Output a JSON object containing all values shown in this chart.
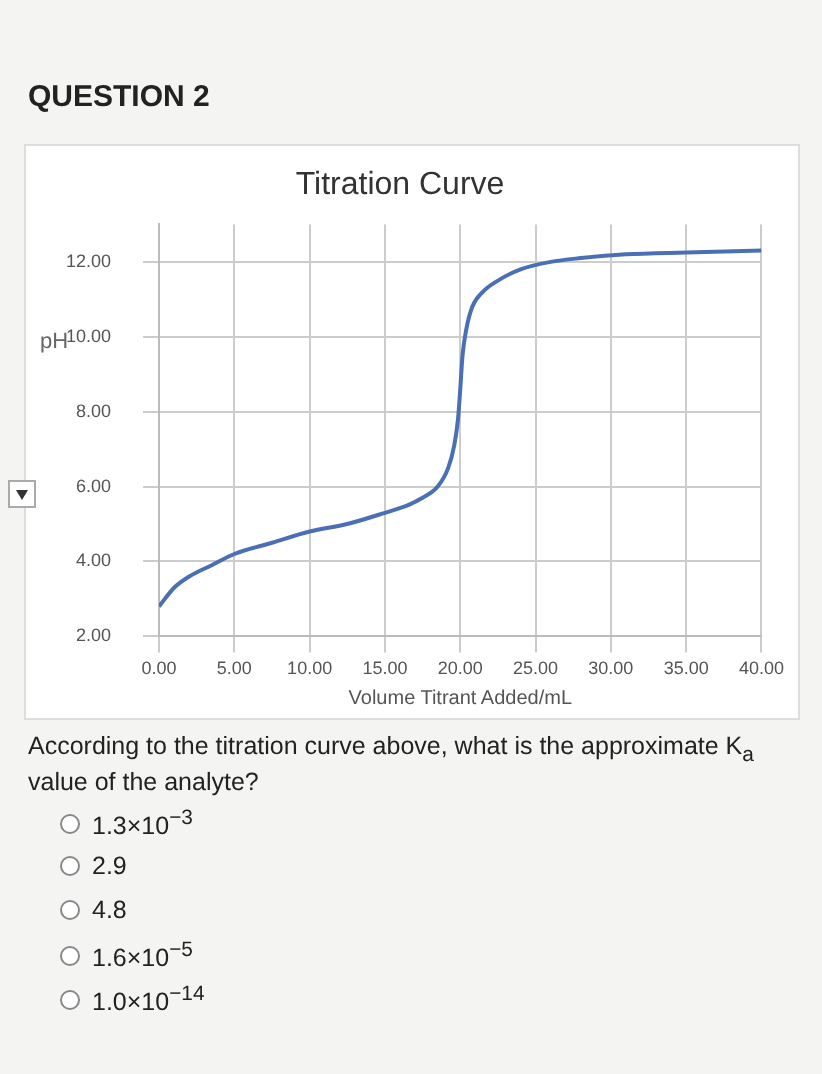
{
  "chart_data": {
    "type": "line",
    "title": "Titration Curve",
    "xlabel": "Volume Titrant Added/mL",
    "ylabel": "pH",
    "annotations": [
      "QUESTION 2",
      "According to the titration curve above, what is the approximate K$_{a}$ value of the analyte?",
      "1.3×10$^{−3}$",
      "2.9",
      "4.8",
      "1.6×10$^{−5}$",
      "1.0×10$^{−14}$"
    ],
    "series": [
      {
        "color": "#4a6fb5",
        "x": [
          0,
          1,
          2,
          3.5,
          5,
          7.5,
          10,
          12.5,
          15,
          16.5,
          17.5,
          18.5,
          19.2,
          19.6,
          19.85,
          20,
          20.15,
          20.4,
          20.8,
          21.5,
          22.5,
          24,
          26,
          28,
          31,
          35,
          40
        ],
        "values": [
          2.8,
          3.3,
          3.6,
          3.9,
          4.2,
          4.5,
          4.8,
          5.0,
          5.3,
          5.5,
          5.7,
          6.0,
          6.5,
          7.1,
          7.8,
          8.6,
          9.5,
          10.2,
          10.8,
          11.2,
          11.5,
          11.8,
          12.0,
          12.1,
          12.2,
          12.25,
          12.3
        ]
      }
    ],
    "xlim": [
      0,
      40
    ],
    "xticks": [
      {
        "value": 0,
        "label": "0.00"
      },
      {
        "value": 5,
        "label": "5.00"
      },
      {
        "value": 10,
        "label": "10.00"
      },
      {
        "value": 15,
        "label": "15.00"
      },
      {
        "value": 20,
        "label": "20.00"
      },
      {
        "value": 25,
        "label": "25.00"
      },
      {
        "value": 30,
        "label": "30.00"
      },
      {
        "value": 35,
        "label": "35.00"
      },
      {
        "value": 40,
        "label": "40.00"
      }
    ],
    "ylim": [
      2,
      13
    ],
    "yticks": [
      {
        "value": 2,
        "label": "2.00"
      },
      {
        "value": 4,
        "label": "4.00"
      },
      {
        "value": 6,
        "label": "6.00"
      },
      {
        "value": 8,
        "label": "8.00"
      },
      {
        "value": 10,
        "label": "10.00"
      },
      {
        "value": 12,
        "label": "12.00"
      }
    ],
    "grid": true,
    "legend": false,
    "marker": "none",
    "line_style": "solid"
  }
}
